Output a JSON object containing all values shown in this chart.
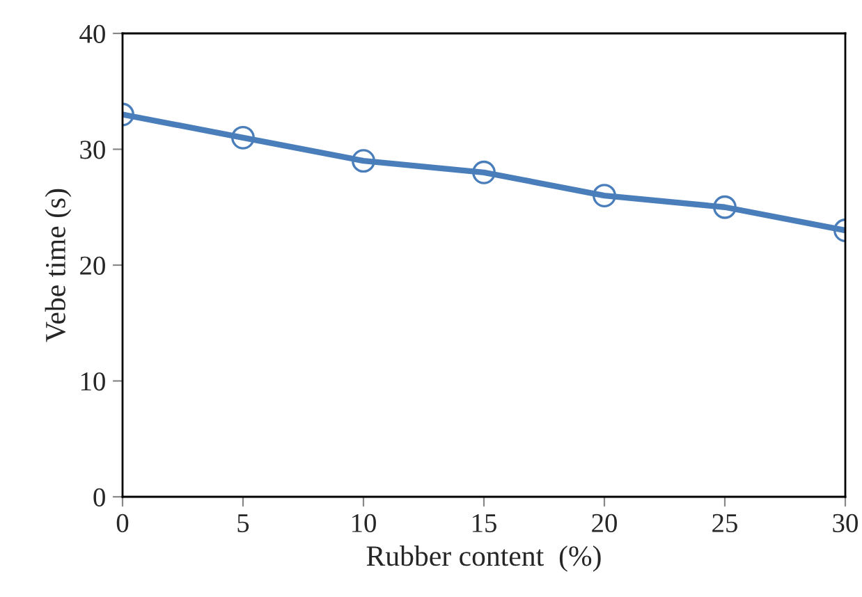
{
  "chart_data": {
    "type": "line",
    "xlabel": "Rubber content  (%)",
    "ylabel": "Vebe time (s)",
    "x": [
      0,
      5,
      10,
      15,
      20,
      25,
      30
    ],
    "series": [
      {
        "color": "#4a7ebb",
        "values": [
          33,
          31,
          29,
          28,
          26,
          25,
          23
        ]
      }
    ],
    "xlim": [
      0,
      30
    ],
    "xticks": [
      0,
      5,
      10,
      15,
      20,
      25,
      30
    ],
    "ylim": [
      0,
      40
    ],
    "yticks": [
      0,
      10,
      20,
      30,
      40
    ],
    "marker": "circle",
    "line_style": "solid",
    "grid": false,
    "legend": false
  }
}
